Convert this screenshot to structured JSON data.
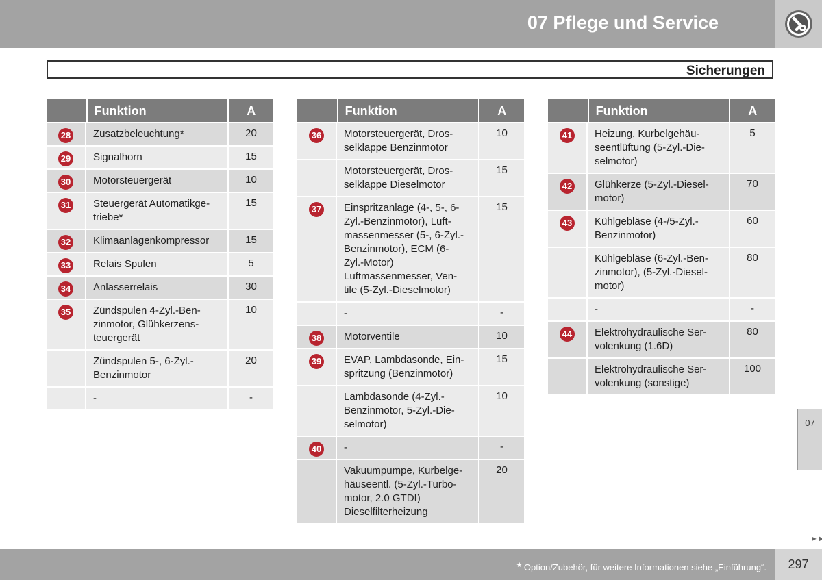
{
  "header": {
    "chapter_title": "07 Pflege und Service",
    "icon": "wrench-cog-icon"
  },
  "section": {
    "title": "Sicherungen"
  },
  "columns": {
    "funktion": "Funktion",
    "ampere": "A"
  },
  "tables": [
    {
      "rows": [
        {
          "num": "28",
          "shade": "g",
          "items": [
            {
              "text": "Zusatzbeleuchtung*",
              "a": "20"
            }
          ]
        },
        {
          "num": "29",
          "shade": "w",
          "items": [
            {
              "text": "Signalhorn",
              "a": "15"
            }
          ]
        },
        {
          "num": "30",
          "shade": "g",
          "items": [
            {
              "text": "Motorsteuergerät",
              "a": "10"
            }
          ]
        },
        {
          "num": "31",
          "shade": "w",
          "items": [
            {
              "text": "Steuergerät Automatikge-\ntriebe*",
              "a": "15"
            }
          ]
        },
        {
          "num": "32",
          "shade": "g",
          "items": [
            {
              "text": "Klimaanlagenkompressor",
              "a": "15"
            }
          ]
        },
        {
          "num": "33",
          "shade": "w",
          "items": [
            {
              "text": "Relais Spulen",
              "a": "5"
            }
          ]
        },
        {
          "num": "34",
          "shade": "g",
          "items": [
            {
              "text": "Anlasserrelais",
              "a": "30"
            }
          ]
        },
        {
          "num": "35",
          "shade": "w",
          "items": [
            {
              "text": "Zündspulen 4-Zyl.-Ben-\nzinmotor, Glühkerzens-\nteuergerät",
              "a": "10"
            },
            {
              "text": "Zündspulen 5-, 6-Zyl.-\nBenzinmotor",
              "a": "20"
            },
            {
              "text": "-",
              "a": "-"
            }
          ]
        }
      ]
    },
    {
      "rows": [
        {
          "num": "36",
          "shade": "w",
          "items": [
            {
              "text": "Motorsteuergerät, Dros-\nselklappe Benzinmotor",
              "a": "10"
            },
            {
              "text": "Motorsteuergerät, Dros-\nselklappe Dieselmotor",
              "a": "15"
            }
          ]
        },
        {
          "num": "37",
          "shade": "w",
          "items": [
            {
              "text": "Einspritzanlage (4-, 5-, 6-\nZyl.-Benzinmotor), Luft-\nmassenmesser (5-, 6-Zyl.-\nBenzinmotor), ECM (6-\nZyl.-Motor)\nLuftmassenmesser, Ven-\ntile (5-Zyl.-Dieselmotor)",
              "a": "15"
            },
            {
              "text": "-",
              "a": "-"
            }
          ]
        },
        {
          "num": "38",
          "shade": "g",
          "items": [
            {
              "text": "Motorventile",
              "a": "10"
            }
          ]
        },
        {
          "num": "39",
          "shade": "w",
          "items": [
            {
              "text": "EVAP, Lambdasonde, Ein-\nspritzung (Benzinmotor)",
              "a": "15"
            },
            {
              "text": "Lambdasonde (4-Zyl.-\nBenzinmotor, 5-Zyl.-Die-\nselmotor)",
              "a": "10"
            }
          ]
        },
        {
          "num": "40",
          "shade": "g",
          "items": [
            {
              "text": "-",
              "a": "-"
            },
            {
              "text": "Vakuumpumpe, Kurbelge-\nhäuseentl. (5-Zyl.-Turbo-\nmotor, 2.0 GTDI)\nDieselfilterheizung",
              "a": "20"
            }
          ]
        }
      ]
    },
    {
      "rows": [
        {
          "num": "41",
          "shade": "w",
          "items": [
            {
              "text": "Heizung, Kurbelgehäu-\nseentlüftung (5-Zyl.-Die-\nselmotor)",
              "a": "5"
            }
          ]
        },
        {
          "num": "42",
          "shade": "g",
          "items": [
            {
              "text": "Glühkerze (5-Zyl.-Diesel-\nmotor)",
              "a": "70"
            }
          ]
        },
        {
          "num": "43",
          "shade": "w",
          "items": [
            {
              "text": "Kühlgebläse (4-/5-Zyl.-\nBenzinmotor)",
              "a": "60"
            },
            {
              "text": "Kühlgebläse (6-Zyl.-Ben-\nzinmotor), (5-Zyl.-Diesel-\nmotor)",
              "a": "80"
            },
            {
              "text": "-",
              "a": "-"
            }
          ]
        },
        {
          "num": "44",
          "shade": "g",
          "items": [
            {
              "text": "Elektrohydraulische Ser-\nvolenkung (1.6D)",
              "a": "80"
            },
            {
              "text": "Elektrohydraulische Ser-\nvolenkung (sonstige)",
              "a": "100"
            }
          ]
        }
      ]
    }
  ],
  "side_tab": {
    "label": "07"
  },
  "footer": {
    "star": "*",
    "note": " Option/Zubehör, für weitere Informationen siehe „Einführung“.",
    "page": "297",
    "next_icon": "double-arrow-right-icon"
  }
}
